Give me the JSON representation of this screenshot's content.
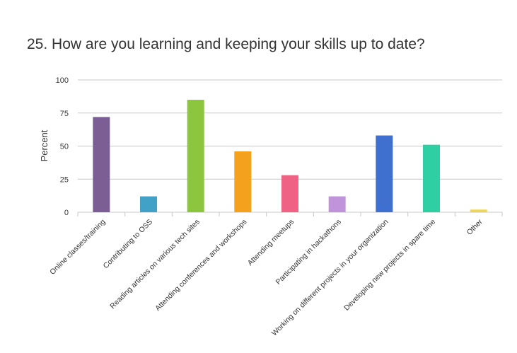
{
  "chart_data": {
    "type": "bar",
    "title": "25. How are you learning and keeping your skills up to date?",
    "xlabel": "",
    "ylabel": "Percent",
    "ylim": [
      0,
      100
    ],
    "yticks": [
      0,
      25,
      50,
      75,
      100
    ],
    "grid": true,
    "categories": [
      "Online classes/training",
      "Contributing to OSS",
      "Reading articles on various tech sites",
      "Attending conferences and workshops",
      "Attending meetups",
      "Participating in hackathons",
      "Working on different projects in your organization",
      "Developing new projects in spare time",
      "Other"
    ],
    "values": [
      72,
      12,
      85,
      46,
      28,
      12,
      58,
      51,
      2
    ],
    "colors": [
      "#7b5e93",
      "#42a1c7",
      "#8cc63f",
      "#f4a21d",
      "#ef6284",
      "#bf94db",
      "#3f6fcf",
      "#2ecfa3",
      "#f0d64e"
    ]
  }
}
